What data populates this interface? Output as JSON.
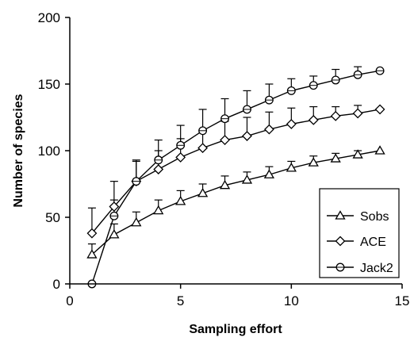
{
  "chart_data": {
    "type": "line",
    "title": "",
    "xlabel": "Sampling effort",
    "ylabel": "Number of species",
    "xlim": [
      0,
      15
    ],
    "ylim": [
      0,
      200
    ],
    "x_ticks": [
      0,
      5,
      10,
      15
    ],
    "y_ticks": [
      0,
      50,
      100,
      150,
      200
    ],
    "grid": false,
    "legend_position": "lower-right",
    "x": [
      1,
      2,
      3,
      4,
      5,
      6,
      7,
      8,
      9,
      10,
      11,
      12,
      13,
      14
    ],
    "series": [
      {
        "name": "Sobs",
        "marker": "triangle",
        "values": [
          22,
          37,
          46,
          55,
          62,
          68,
          74,
          78,
          82,
          87,
          91,
          94,
          97,
          100
        ],
        "errors": [
          8,
          8,
          8,
          8,
          8,
          7,
          7,
          6,
          6,
          5,
          5,
          4,
          3,
          0
        ]
      },
      {
        "name": "ACE",
        "marker": "diamond",
        "values": [
          38,
          58,
          77,
          86,
          95,
          102,
          108,
          111,
          116,
          120,
          123,
          126,
          128,
          131
        ],
        "errors": [
          19,
          19,
          16,
          14,
          14,
          14,
          14,
          14,
          13,
          12,
          10,
          7,
          6,
          0
        ]
      },
      {
        "name": "Jack2",
        "marker": "circle",
        "values": [
          0,
          51,
          77,
          93,
          104,
          115,
          124,
          131,
          138,
          145,
          149,
          153,
          157,
          160
        ],
        "errors": [
          0,
          12,
          15,
          15,
          15,
          16,
          15,
          14,
          12,
          9,
          7,
          8,
          6,
          0
        ]
      }
    ]
  }
}
